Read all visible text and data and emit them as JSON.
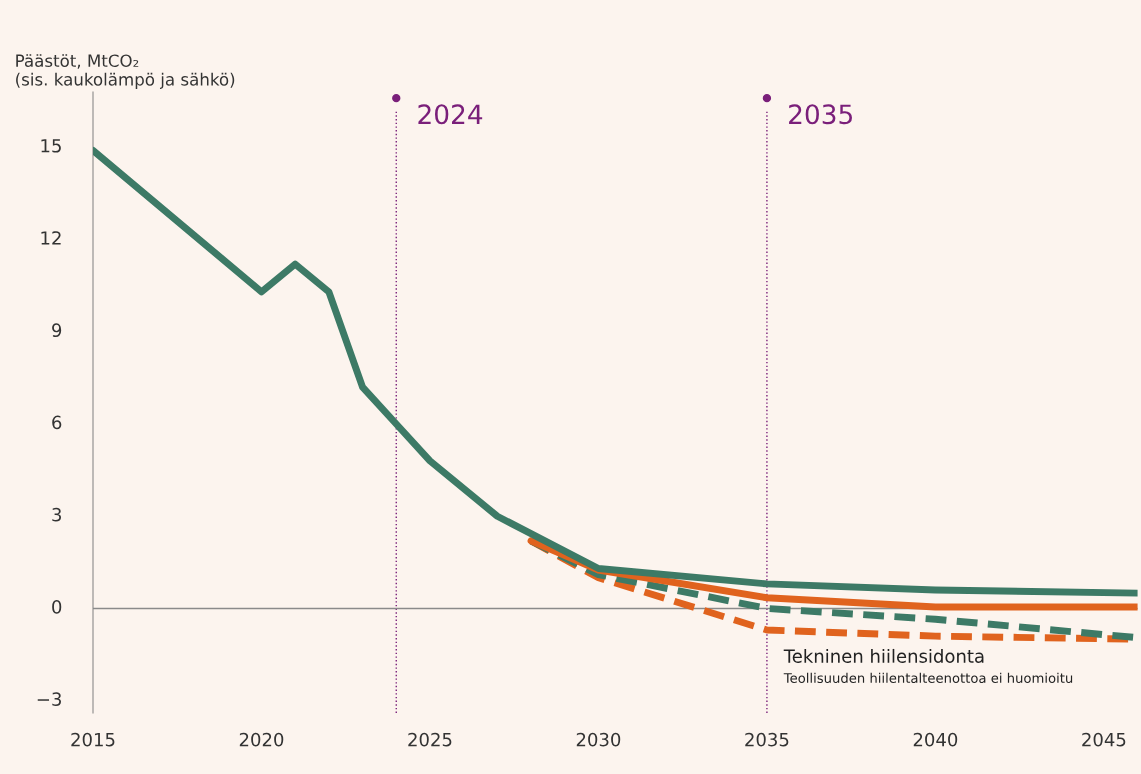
{
  "chart_data": {
    "type": "line",
    "ylabel": "Päästöt, MtCO₂\n(sis. kaukolämpö ja sähkö)",
    "series": [
      {
        "color": "#3d7a66",
        "line_style": "solid",
        "x": [
          2015,
          2020,
          2021,
          2022,
          2023,
          2024,
          2025,
          2027,
          2030,
          2035,
          2040,
          2046
        ],
        "values": [
          14.9,
          10.3,
          11.2,
          10.3,
          7.2,
          6.0,
          4.8,
          3.0,
          1.3,
          0.8,
          0.6,
          0.5
        ]
      },
      {
        "color": "#e0631e",
        "line_style": "solid",
        "x": [
          2028,
          2030,
          2035,
          2040,
          2046
        ],
        "values": [
          2.2,
          1.25,
          0.35,
          0.05,
          0.05
        ]
      },
      {
        "color": "#3d7a66",
        "line_style": "dashed",
        "x": [
          2028,
          2030,
          2035,
          2040,
          2046
        ],
        "values": [
          2.2,
          1.1,
          0.0,
          -0.35,
          -0.95
        ]
      },
      {
        "color": "#e0631e",
        "line_style": "dashed",
        "x": [
          2028,
          2030,
          2035,
          2040,
          2046
        ],
        "values": [
          2.2,
          1.0,
          -0.7,
          -0.9,
          -1.0
        ]
      }
    ],
    "xlim": [
      2015,
      2046
    ],
    "xticks": [
      2015,
      2020,
      2025,
      2030,
      2035,
      2040,
      2045
    ],
    "ylim": [
      -3.4,
      16.8
    ],
    "yticks": [
      -3,
      0,
      3,
      6,
      9,
      12,
      15
    ],
    "ref_lines": [
      {
        "axis": "x",
        "value": 2024,
        "label": "2024",
        "color": "#7a1f7a",
        "line_style": "dotted"
      },
      {
        "axis": "x",
        "value": 2035,
        "label": "2035",
        "color": "#7a1f7a",
        "line_style": "dotted"
      },
      {
        "axis": "y",
        "value": 0,
        "color": "#8a8a8a",
        "line_style": "solid"
      }
    ],
    "annotations": [
      "Tekninen hiilensidonta",
      "Teollisuuden hiilentalteenottoa ei huomioitu"
    ],
    "grid": false,
    "legend": false
  }
}
